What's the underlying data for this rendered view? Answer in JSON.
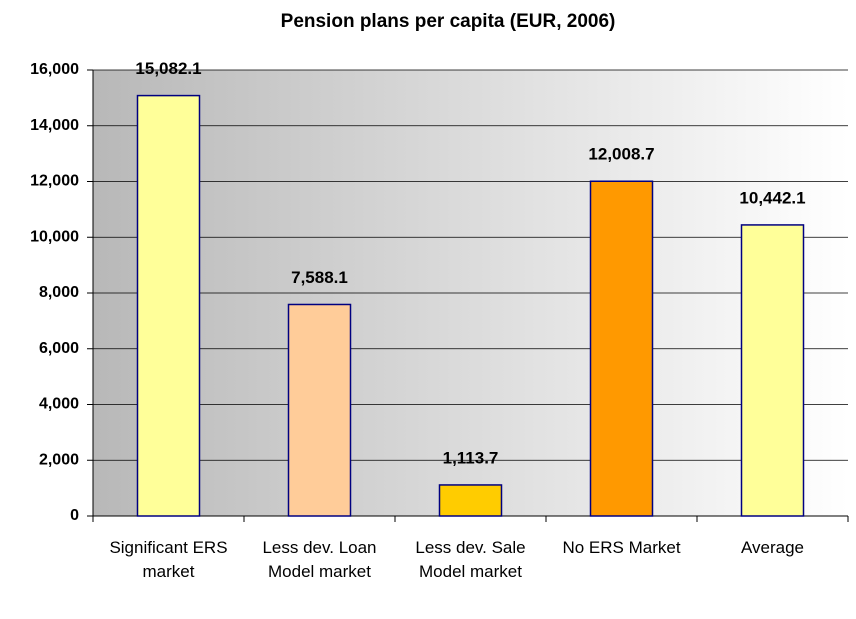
{
  "chart_data": {
    "type": "bar",
    "title": "Pension plans per capita (EUR, 2006)",
    "categories": [
      "Significant ERS market",
      "Less dev. Loan Model market",
      "Less dev. Sale Model market",
      "No ERS Market",
      "Average"
    ],
    "values": [
      15082.1,
      7588.1,
      1113.7,
      12008.7,
      10442.1
    ],
    "value_labels": [
      "15,082.1",
      "7,588.1",
      "1,113.7",
      "12,008.7",
      "10,442.1"
    ],
    "colors": [
      "#ffff99",
      "#ffcc99",
      "#ffcc00",
      "#ff9900",
      "#ffff99"
    ],
    "ylim": [
      0,
      16000
    ],
    "yticks": [
      0,
      {
        "value": 2000,
        "label": "2,000"
      },
      {
        "value": 4000,
        "label": "4,000"
      },
      {
        "value": 6000,
        "label": "6,000"
      },
      {
        "value": 8000,
        "label": "8,000"
      },
      {
        "value": 10000,
        "label": "10,000"
      },
      {
        "value": 12000,
        "label": "12,000"
      },
      {
        "value": 14000,
        "label": "14,000"
      },
      {
        "value": 16000,
        "label": "16,000"
      }
    ],
    "grid": true
  }
}
